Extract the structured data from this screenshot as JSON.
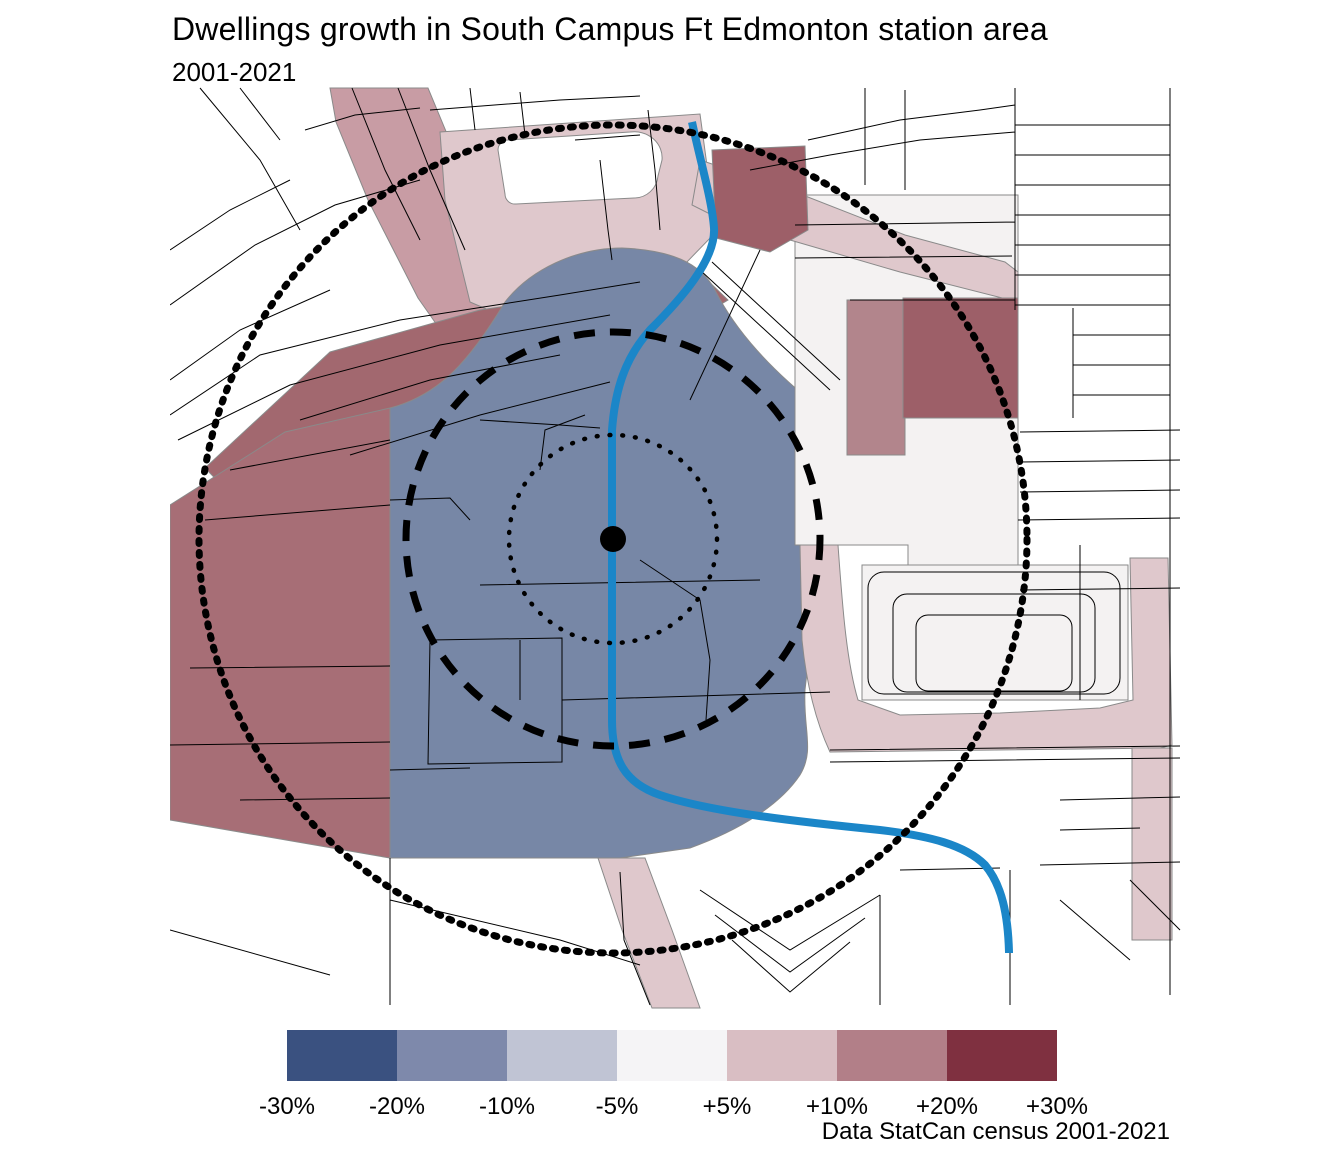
{
  "title": "Dwellings growth in South Campus Ft Edmonton station area",
  "subtitle": "2001-2021",
  "source_caption": "Data StatCan census 2001-2021",
  "legend": {
    "labels": [
      "-30%",
      "-20%",
      "-10%",
      "-5%",
      "+5%",
      "+10%",
      "+20%",
      "+30%"
    ],
    "swatch_colors": [
      "#3a5180",
      "#7e89ab",
      "#c0c4d4",
      "#f5f4f6",
      "#d9bec3",
      "#b27f88",
      "#7f3040"
    ],
    "bins": [
      "-30% to -20%",
      "-20% to -10%",
      "-10% to -5%",
      "-5% to +5%",
      "+5% to +10%",
      "+10% to +20%",
      "+20% to +30%"
    ]
  },
  "map": {
    "station_label": "South Campus Ft Edmonton station",
    "lrt_line_color": "#1b86c8",
    "ring_styles": {
      "outer": "bold-dotted",
      "middle": "dashed",
      "inner": "dotted"
    },
    "zone_colors": {
      "strong_decline_blue": "#7787a6",
      "growth_rose": "#a76e76",
      "strong_growth_rose": "#9d5f68",
      "moderate_growth_pink": "#c89ca4",
      "slight_growth_pale_pink": "#dfc8cc",
      "stable_near_white": "#f4f2f2"
    }
  }
}
